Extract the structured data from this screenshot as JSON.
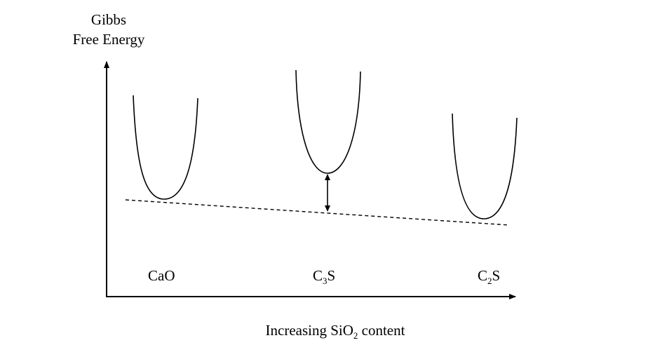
{
  "diagram": {
    "y_axis_label": {
      "line1": "Gibbs",
      "line2": "Free Energy"
    },
    "x_axis_label": {
      "prefix": "Increasing SiO",
      "subscript": "2",
      "suffix": " content"
    },
    "phases": [
      {
        "main": "CaO",
        "subscript": "",
        "tail": ""
      },
      {
        "main": "C",
        "subscript": "3",
        "tail": "S"
      },
      {
        "main": "C",
        "subscript": "2",
        "tail": "S"
      }
    ],
    "colors": {
      "stroke": "#000000",
      "background": "#ffffff"
    }
  }
}
